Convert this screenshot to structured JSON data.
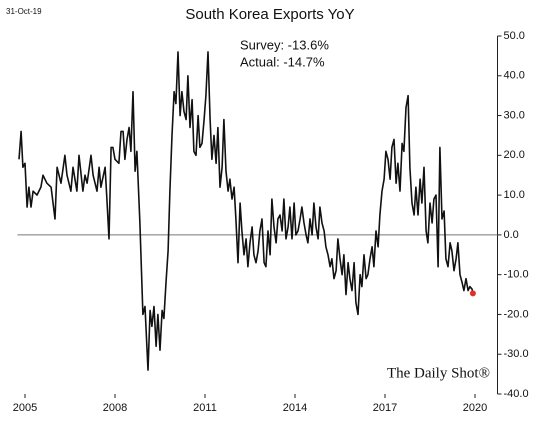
{
  "chart_data": {
    "type": "line",
    "title": "South Korea Exports YoY",
    "date": "31-Oct-19",
    "annotations": [
      "Survey: -13.6%",
      "Actual:  -14.7%"
    ],
    "source": "The Daily Shot®",
    "x": [
      2004.8,
      2004.87,
      2004.93,
      2005.0,
      2005.07,
      2005.13,
      2005.2,
      2005.27,
      2005.4,
      2005.53,
      2005.6,
      2005.73,
      2005.87,
      2006.0,
      2006.07,
      2006.2,
      2006.33,
      2006.4,
      2006.53,
      2006.6,
      2006.73,
      2006.8,
      2006.93,
      2007.0,
      2007.07,
      2007.2,
      2007.27,
      2007.4,
      2007.47,
      2007.53,
      2007.67,
      2007.73,
      2007.8,
      2007.87,
      2007.93,
      2008.0,
      2008.13,
      2008.2,
      2008.27,
      2008.33,
      2008.4,
      2008.47,
      2008.53,
      2008.6,
      2008.67,
      2008.73,
      2008.83,
      2008.93,
      2009.0,
      2009.1,
      2009.17,
      2009.23,
      2009.3,
      2009.37,
      2009.43,
      2009.5,
      2009.57,
      2009.63,
      2009.7,
      2009.77,
      2009.83,
      2009.9,
      2009.97,
      2010.03,
      2010.1,
      2010.17,
      2010.23,
      2010.3,
      2010.37,
      2010.43,
      2010.5,
      2010.57,
      2010.63,
      2010.7,
      2010.77,
      2010.83,
      2010.9,
      2010.97,
      2011.03,
      2011.1,
      2011.17,
      2011.23,
      2011.3,
      2011.37,
      2011.43,
      2011.5,
      2011.57,
      2011.63,
      2011.7,
      2011.77,
      2011.83,
      2011.9,
      2011.97,
      2012.03,
      2012.1,
      2012.17,
      2012.23,
      2012.3,
      2012.37,
      2012.43,
      2012.5,
      2012.57,
      2012.63,
      2012.7,
      2012.77,
      2012.83,
      2012.9,
      2012.97,
      2013.03,
      2013.1,
      2013.17,
      2013.23,
      2013.3,
      2013.37,
      2013.43,
      2013.5,
      2013.57,
      2013.63,
      2013.7,
      2013.77,
      2013.83,
      2013.9,
      2013.97,
      2014.03,
      2014.1,
      2014.17,
      2014.23,
      2014.3,
      2014.37,
      2014.43,
      2014.5,
      2014.57,
      2014.63,
      2014.7,
      2014.77,
      2014.83,
      2014.9,
      2014.97,
      2015.03,
      2015.1,
      2015.17,
      2015.23,
      2015.3,
      2015.37,
      2015.43,
      2015.5,
      2015.57,
      2015.63,
      2015.7,
      2015.77,
      2015.83,
      2015.9,
      2015.97,
      2016.03,
      2016.1,
      2016.17,
      2016.23,
      2016.3,
      2016.37,
      2016.43,
      2016.5,
      2016.57,
      2016.63,
      2016.7,
      2016.77,
      2016.83,
      2016.9,
      2016.97,
      2017.03,
      2017.1,
      2017.17,
      2017.23,
      2017.3,
      2017.37,
      2017.43,
      2017.5,
      2017.57,
      2017.63,
      2017.7,
      2017.77,
      2017.83,
      2017.9,
      2017.97,
      2018.03,
      2018.1,
      2018.17,
      2018.23,
      2018.3,
      2018.37,
      2018.43,
      2018.5,
      2018.57,
      2018.63,
      2018.7,
      2018.77,
      2018.83,
      2018.9,
      2018.97,
      2019.03,
      2019.1,
      2019.17,
      2019.23,
      2019.3,
      2019.37,
      2019.43,
      2019.5,
      2019.57,
      2019.63,
      2019.7,
      2019.77,
      2019.83,
      2019.9,
      2019.93
    ],
    "series": [
      {
        "name": "South Korea Exports YoY",
        "color": "#111111",
        "values": [
          19,
          26,
          17,
          18,
          7,
          12,
          7,
          11,
          10,
          12,
          15,
          13,
          12,
          4,
          17,
          13,
          20,
          15,
          11,
          17,
          11,
          20,
          11,
          15,
          13,
          20,
          15,
          11,
          17,
          12,
          17,
          9,
          -1,
          22,
          22,
          19,
          18,
          26,
          26,
          19,
          24,
          27,
          21,
          36,
          16,
          21,
          3,
          -20,
          -18,
          -34,
          -19,
          -23,
          -18,
          -28,
          -20,
          -29,
          -19,
          -21,
          -12,
          -4,
          11,
          25,
          36,
          33,
          46,
          30,
          36,
          31,
          29,
          40,
          27,
          34,
          21,
          20,
          30,
          22,
          23,
          29,
          35,
          46,
          29,
          19,
          25,
          18,
          27,
          12,
          17,
          29,
          16,
          11,
          14,
          9,
          12,
          4,
          -7,
          8,
          1,
          -5,
          -1,
          -8,
          -2,
          2,
          -5,
          -7,
          -4,
          1,
          4,
          -7,
          -8,
          1,
          -5,
          9,
          2,
          -2,
          4,
          5,
          1,
          9,
          -1,
          2,
          7,
          -1,
          8,
          0,
          1,
          4,
          7,
          3,
          0,
          -2,
          4,
          0,
          8,
          2,
          -1,
          7,
          3,
          1,
          -3,
          -5,
          -8,
          -6,
          -11,
          -9,
          -1,
          -6,
          -10,
          -5,
          -15,
          -7,
          -11,
          -14,
          -7,
          -17,
          -20,
          -10,
          -13,
          -5,
          -11,
          -10,
          -6,
          -3,
          -8,
          1,
          -3,
          5,
          11,
          14,
          21,
          19,
          14,
          22,
          24,
          13,
          18,
          11,
          23,
          21,
          32,
          35,
          17,
          8,
          5,
          12,
          5,
          14,
          8,
          17,
          1,
          -2,
          8,
          3,
          9,
          10,
          -8,
          22,
          4,
          6,
          -6,
          -8,
          -2,
          -4,
          -9,
          -6,
          -2,
          -10,
          -12,
          -14,
          -11,
          -14,
          -13,
          -13.6,
          -14.7
        ]
      }
    ],
    "last_point_color": "#e0302a",
    "xlim": [
      2004.75,
      2020.75
    ],
    "xticks": [
      2005,
      2008,
      2011,
      2014,
      2017,
      2020
    ],
    "ylim": [
      -40,
      50
    ],
    "yticks": [
      {
        "value": -40,
        "label": "-40.0"
      },
      {
        "value": -30,
        "label": "-30.0"
      },
      {
        "value": -20,
        "label": "-20.0"
      },
      {
        "value": -10,
        "label": "-10.0"
      },
      {
        "value": 0,
        "label": "0.0"
      },
      {
        "value": 10,
        "label": "10.0"
      },
      {
        "value": 20,
        "label": "20.0"
      },
      {
        "value": 30,
        "label": "30.0"
      },
      {
        "value": 40,
        "label": "40.0"
      },
      {
        "value": 50,
        "label": "50.0"
      }
    ],
    "zero_line": true
  }
}
